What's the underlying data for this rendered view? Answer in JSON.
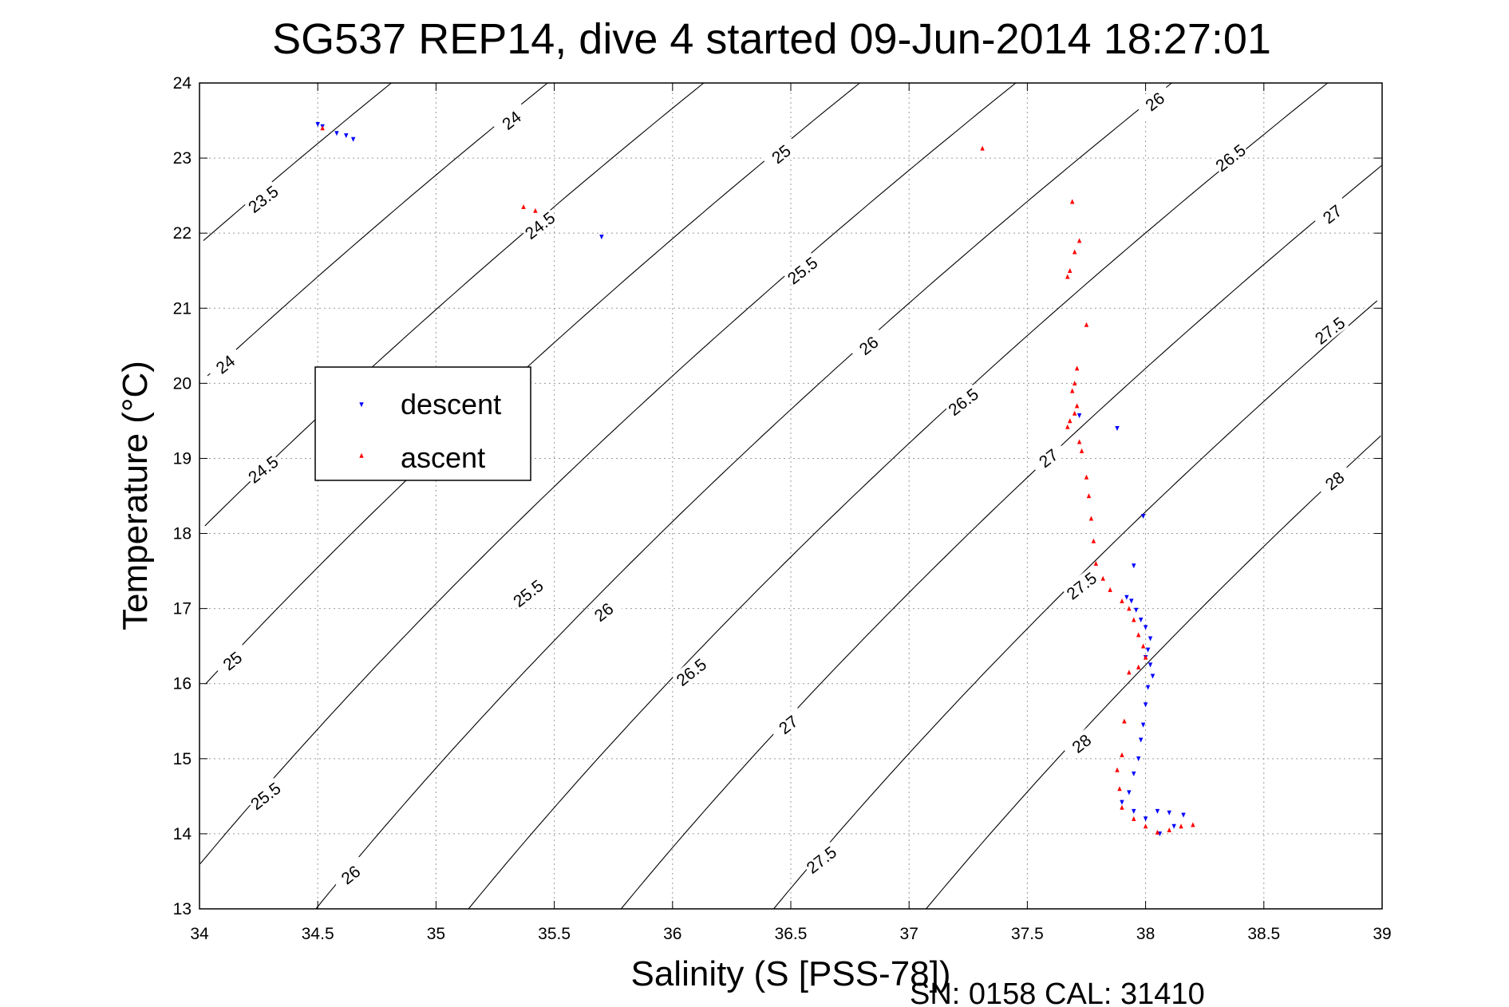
{
  "chart_data": {
    "type": "scatter",
    "title": "SG537 REP14, dive 4 started 09-Jun-2014 18:27:01",
    "xlabel": "Salinity (S [PSS-78])",
    "ylabel": "Temperature (°C)",
    "xlim": [
      34,
      39
    ],
    "ylim": [
      13,
      24
    ],
    "xticks": [
      34,
      34.5,
      35,
      35.5,
      36,
      36.5,
      37,
      37.5,
      38,
      38.5,
      39
    ],
    "yticks": [
      13,
      14,
      15,
      16,
      17,
      18,
      19,
      20,
      21,
      22,
      23,
      24
    ],
    "grid": true,
    "legend_position": "left",
    "footer": "SN: 0158  CAL: 31410",
    "density_contours": [
      23.5,
      24,
      24.5,
      25,
      25.5,
      26,
      26.5,
      27,
      27.5,
      28
    ],
    "contour_labels": [
      {
        "text": "23.5",
        "s": 34.27,
        "t": 22.45
      },
      {
        "text": "24",
        "s": 34.11,
        "t": 20.25
      },
      {
        "text": "24.5",
        "s": 34.27,
        "t": 18.85
      },
      {
        "text": "25",
        "s": 34.14,
        "t": 16.3
      },
      {
        "text": "25.5",
        "s": 34.28,
        "t": 14.5
      },
      {
        "text": "26",
        "s": 34.64,
        "t": 13.45
      },
      {
        "text": "24",
        "s": 35.32,
        "t": 23.5
      },
      {
        "text": "24.5",
        "s": 35.44,
        "t": 22.1
      },
      {
        "text": "25.5",
        "s": 35.39,
        "t": 17.2
      },
      {
        "text": "26",
        "s": 35.71,
        "t": 16.95
      },
      {
        "text": "25",
        "s": 36.46,
        "t": 23.05
      },
      {
        "text": "25.5",
        "s": 36.55,
        "t": 21.5
      },
      {
        "text": "26.5",
        "s": 36.08,
        "t": 16.15
      },
      {
        "text": "27",
        "s": 36.49,
        "t": 15.45
      },
      {
        "text": "27.5",
        "s": 36.63,
        "t": 13.65
      },
      {
        "text": "26",
        "s": 36.83,
        "t": 20.5
      },
      {
        "text": "26.5",
        "s": 37.23,
        "t": 19.75
      },
      {
        "text": "27",
        "s": 37.59,
        "t": 19.0
      },
      {
        "text": "27.5",
        "s": 37.73,
        "t": 17.3
      },
      {
        "text": "28",
        "s": 37.73,
        "t": 15.2
      },
      {
        "text": "26",
        "s": 38.04,
        "t": 23.75
      },
      {
        "text": "26.5",
        "s": 38.36,
        "t": 23.0
      },
      {
        "text": "27",
        "s": 38.79,
        "t": 22.25
      },
      {
        "text": "27.5",
        "s": 38.78,
        "t": 20.7
      },
      {
        "text": "28",
        "s": 38.8,
        "t": 18.7
      }
    ],
    "series": [
      {
        "name": "descent",
        "color": "#0000ff",
        "marker": "triangle-down",
        "points": [
          [
            34.5,
            23.45
          ],
          [
            34.52,
            23.42
          ],
          [
            34.58,
            23.33
          ],
          [
            34.62,
            23.3
          ],
          [
            34.65,
            23.25
          ],
          [
            35.7,
            21.95
          ],
          [
            37.72,
            19.57
          ],
          [
            37.88,
            19.4
          ],
          [
            37.99,
            18.23
          ],
          [
            37.95,
            17.57
          ],
          [
            37.92,
            17.15
          ],
          [
            37.94,
            17.1
          ],
          [
            37.96,
            16.98
          ],
          [
            37.98,
            16.85
          ],
          [
            38.0,
            16.75
          ],
          [
            38.02,
            16.6
          ],
          [
            38.01,
            16.45
          ],
          [
            38.0,
            16.35
          ],
          [
            38.02,
            16.25
          ],
          [
            38.03,
            16.1
          ],
          [
            38.01,
            15.95
          ],
          [
            38.0,
            15.72
          ],
          [
            37.99,
            15.45
          ],
          [
            37.98,
            15.25
          ],
          [
            37.97,
            15.0
          ],
          [
            37.95,
            14.8
          ],
          [
            37.93,
            14.55
          ],
          [
            37.9,
            14.42
          ],
          [
            37.95,
            14.3
          ],
          [
            38.0,
            14.2
          ],
          [
            38.05,
            14.3
          ],
          [
            38.1,
            14.28
          ],
          [
            38.16,
            14.25
          ],
          [
            38.12,
            14.1
          ],
          [
            38.06,
            14.0
          ]
        ]
      },
      {
        "name": "ascent",
        "color": "#ff0000",
        "marker": "triangle-up",
        "points": [
          [
            34.52,
            23.4
          ],
          [
            35.37,
            22.35
          ],
          [
            35.42,
            22.3
          ],
          [
            37.31,
            23.13
          ],
          [
            37.69,
            22.42
          ],
          [
            37.72,
            21.9
          ],
          [
            37.7,
            21.75
          ],
          [
            37.68,
            21.5
          ],
          [
            37.67,
            21.42
          ],
          [
            37.75,
            20.78
          ],
          [
            37.71,
            20.2
          ],
          [
            37.7,
            20.0
          ],
          [
            37.69,
            19.9
          ],
          [
            37.71,
            19.7
          ],
          [
            37.7,
            19.6
          ],
          [
            37.68,
            19.5
          ],
          [
            37.67,
            19.42
          ],
          [
            37.72,
            19.22
          ],
          [
            37.73,
            19.1
          ],
          [
            37.75,
            18.75
          ],
          [
            37.76,
            18.5
          ],
          [
            37.77,
            18.2
          ],
          [
            37.78,
            17.9
          ],
          [
            37.79,
            17.6
          ],
          [
            37.82,
            17.4
          ],
          [
            37.85,
            17.25
          ],
          [
            37.9,
            17.1
          ],
          [
            37.93,
            17.0
          ],
          [
            37.95,
            16.85
          ],
          [
            37.97,
            16.65
          ],
          [
            37.99,
            16.5
          ],
          [
            38.0,
            16.35
          ],
          [
            37.97,
            16.22
          ],
          [
            37.93,
            16.15
          ],
          [
            37.91,
            15.5
          ],
          [
            37.9,
            15.05
          ],
          [
            37.88,
            14.85
          ],
          [
            37.89,
            14.6
          ],
          [
            37.9,
            14.35
          ],
          [
            37.95,
            14.2
          ],
          [
            38.0,
            14.1
          ],
          [
            38.05,
            14.02
          ],
          [
            38.1,
            14.05
          ],
          [
            38.15,
            14.1
          ],
          [
            38.2,
            14.12
          ]
        ]
      }
    ]
  }
}
